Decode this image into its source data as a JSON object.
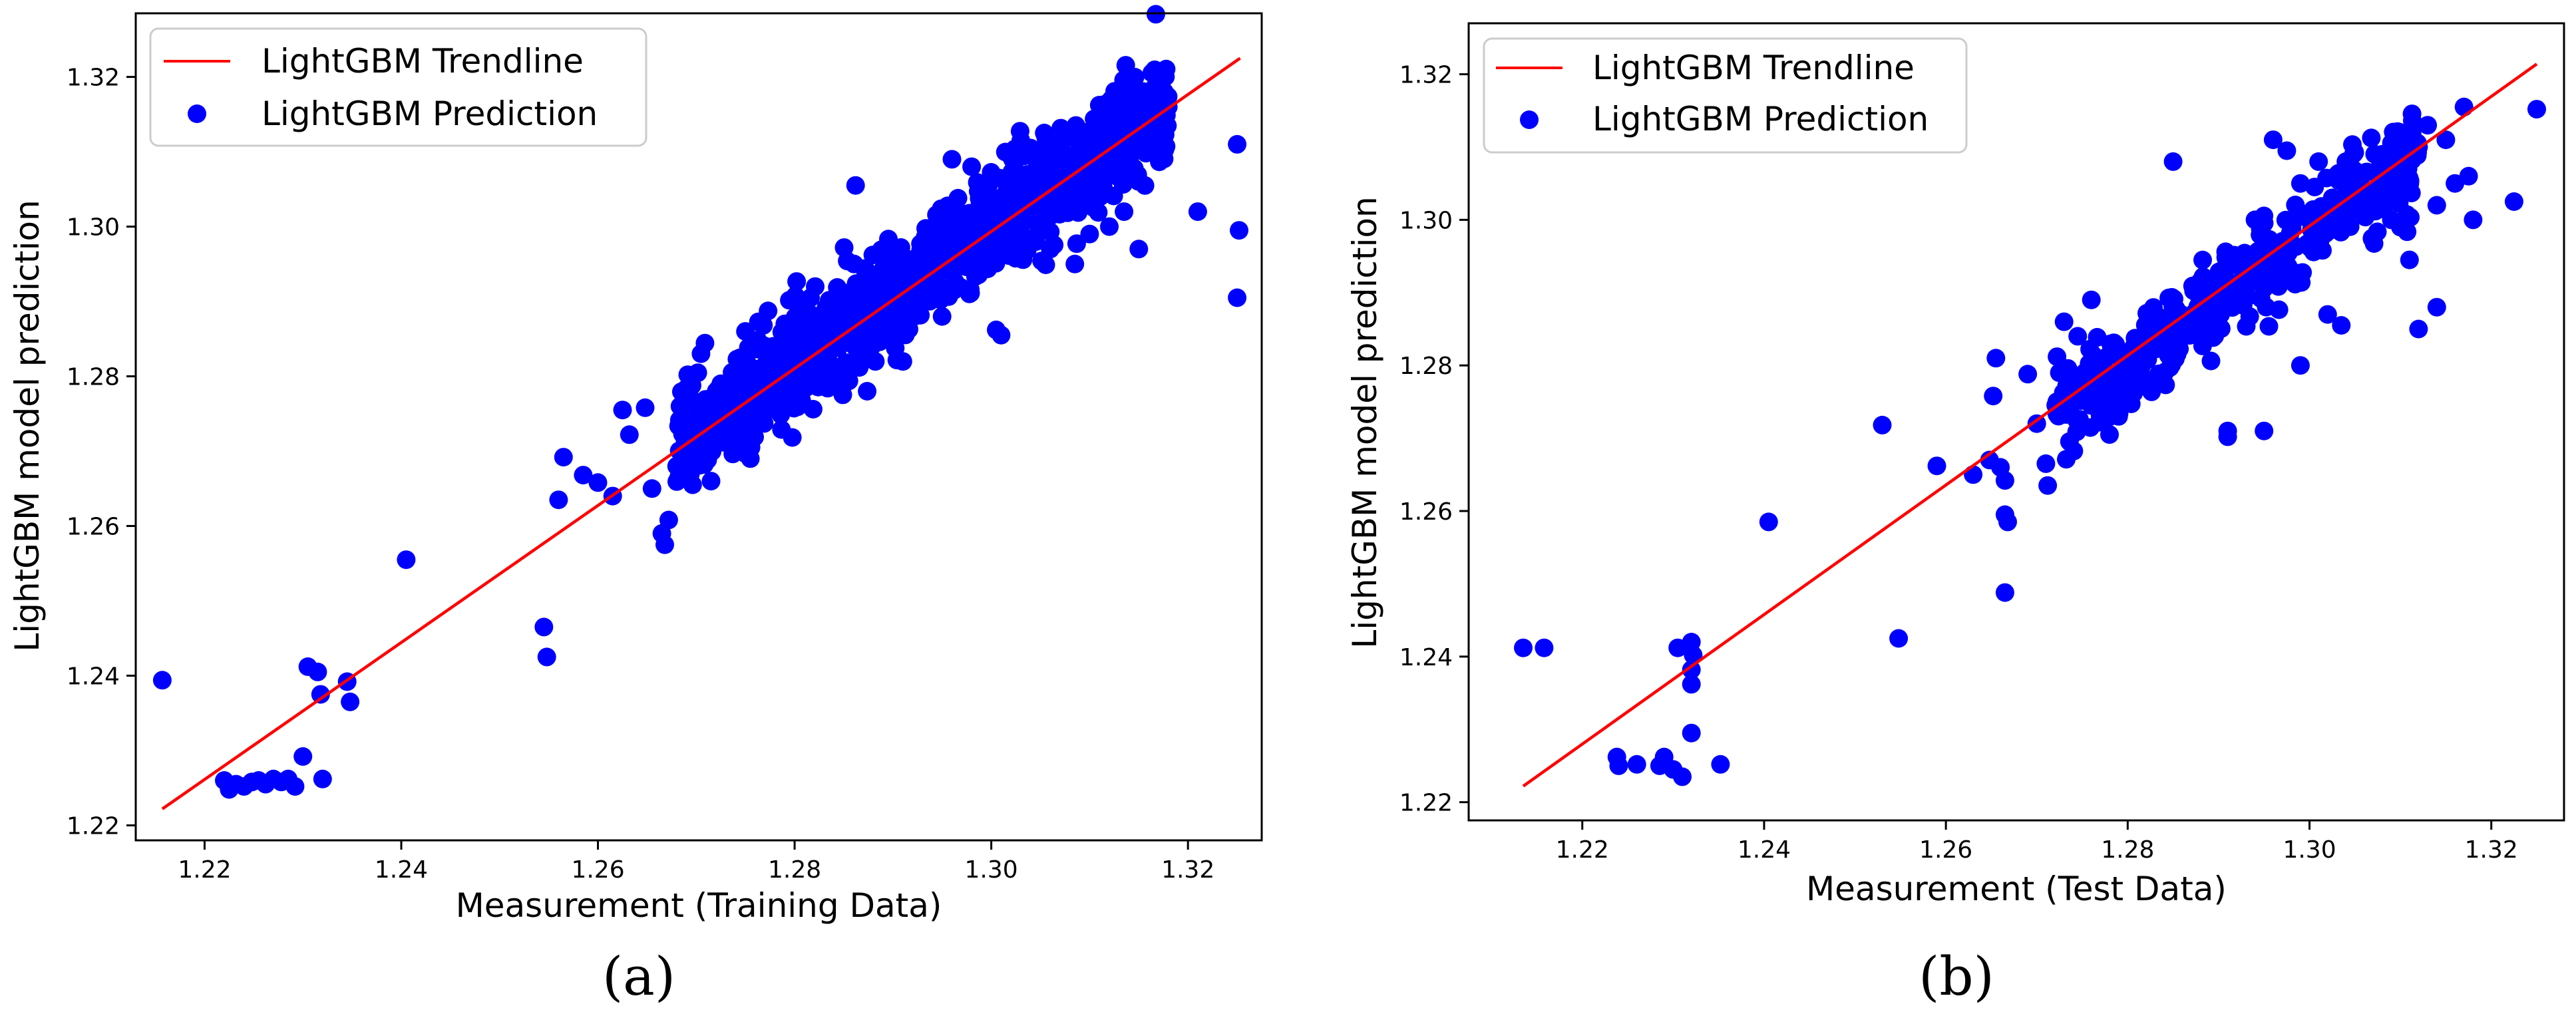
{
  "chart_data": [
    {
      "type": "scatter",
      "panel_label": "(a)",
      "xlabel": "Measurement (Training Data)",
      "ylabel": "LightGBM model prediction",
      "xlim": [
        1.213,
        1.3275
      ],
      "ylim": [
        1.218,
        1.3285
      ],
      "xticks": [
        1.22,
        1.24,
        1.26,
        1.28,
        1.3,
        1.32
      ],
      "xtick_labels": [
        "1.22",
        "1.24",
        "1.26",
        "1.28",
        "1.30",
        "1.32"
      ],
      "yticks": [
        1.22,
        1.24,
        1.26,
        1.28,
        1.3,
        1.32
      ],
      "ytick_labels": [
        "1.22",
        "1.24",
        "1.26",
        "1.28",
        "1.30",
        "1.32"
      ],
      "legend": {
        "position": "top-left",
        "entries": [
          {
            "label": "LightGBM Trendline",
            "kind": "line",
            "color": "#ff0000"
          },
          {
            "label": "LightGBM Prediction",
            "kind": "marker",
            "color": "#0000ff"
          }
        ]
      },
      "trendline": {
        "name": "LightGBM Trendline",
        "x": [
          1.2157,
          1.3253
        ],
        "y": [
          1.2222,
          1.3225
        ],
        "color": "#ff0000"
      },
      "series": [
        {
          "name": "LightGBM Prediction",
          "color": "#0000ff",
          "cluster": {
            "n": 1100,
            "x_range": [
              1.268,
              1.318
            ],
            "slope": 0.91,
            "intercept": 0.117,
            "noise": 0.0035,
            "seed": 7
          },
          "points": [
            [
              1.2157,
              1.2394
            ],
            [
              1.222,
              1.226
            ],
            [
              1.2225,
              1.2248
            ],
            [
              1.2232,
              1.2255
            ],
            [
              1.224,
              1.2252
            ],
            [
              1.2248,
              1.2258
            ],
            [
              1.2255,
              1.226
            ],
            [
              1.2262,
              1.2255
            ],
            [
              1.227,
              1.2262
            ],
            [
              1.2278,
              1.2258
            ],
            [
              1.2285,
              1.2262
            ],
            [
              1.2292,
              1.2252
            ],
            [
              1.23,
              1.2292
            ],
            [
              1.2305,
              1.2412
            ],
            [
              1.2315,
              1.2405
            ],
            [
              1.2318,
              1.2375
            ],
            [
              1.2345,
              1.2392
            ],
            [
              1.2348,
              1.2365
            ],
            [
              1.232,
              1.2262
            ],
            [
              1.2405,
              1.2555
            ],
            [
              1.2545,
              1.2465
            ],
            [
              1.2548,
              1.2425
            ],
            [
              1.256,
              1.2635
            ],
            [
              1.2565,
              1.2692
            ],
            [
              1.2585,
              1.2668
            ],
            [
              1.26,
              1.2658
            ],
            [
              1.2615,
              1.264
            ],
            [
              1.2625,
              1.2755
            ],
            [
              1.2632,
              1.2722
            ],
            [
              1.2648,
              1.2758
            ],
            [
              1.2655,
              1.265
            ],
            [
              1.2665,
              1.259
            ],
            [
              1.2668,
              1.2575
            ],
            [
              1.2672,
              1.2608
            ],
            [
              1.268,
              1.268
            ],
            [
              1.269,
              1.27
            ],
            [
              1.2705,
              1.272
            ],
            [
              1.2715,
              1.266
            ],
            [
              1.2725,
              1.279
            ],
            [
              1.274,
              1.272
            ],
            [
              1.2755,
              1.269
            ],
            [
              1.277,
              1.2805
            ],
            [
              1.278,
              1.282
            ],
            [
              1.2862,
              1.3055
            ],
            [
              1.2878,
              1.2935
            ],
            [
              1.295,
              1.288
            ],
            [
              1.297,
              1.3
            ],
            [
              1.3005,
              1.2862
            ],
            [
              1.301,
              1.2855
            ],
            [
              1.3045,
              1.2985
            ],
            [
              1.306,
              1.297
            ],
            [
              1.3085,
              1.295
            ],
            [
              1.31,
              1.299
            ],
            [
              1.312,
              1.3
            ],
            [
              1.3135,
              1.302
            ],
            [
              1.315,
              1.297
            ],
            [
              1.3175,
              1.3095
            ],
            [
              1.318,
              1.316
            ],
            [
              1.321,
              1.302
            ],
            [
              1.325,
              1.311
            ],
            [
              1.3252,
              1.2995
            ],
            [
              1.325,
              1.2905
            ],
            [
              1.296,
              1.309
            ],
            [
              1.298,
              1.308
            ],
            [
              1.303,
              1.3115
            ],
            [
              1.304,
              1.3105
            ],
            [
              1.309,
              1.3105
            ],
            [
              1.311,
              1.313
            ],
            [
              1.315,
              1.312
            ],
            [
              1.317,
              1.311
            ],
            [
              1.275,
              1.286
            ],
            [
              1.279,
              1.287
            ]
          ]
        }
      ]
    },
    {
      "type": "scatter",
      "panel_label": "(b)",
      "xlabel": "Measurement (Test Data)",
      "ylabel": "LightGBM model prediction",
      "xlim": [
        1.2075,
        1.328
      ],
      "ylim": [
        1.2175,
        1.327
      ],
      "xticks": [
        1.22,
        1.24,
        1.26,
        1.28,
        1.3,
        1.32
      ],
      "xtick_labels": [
        "1.22",
        "1.24",
        "1.26",
        "1.28",
        "1.30",
        "1.32"
      ],
      "yticks": [
        1.22,
        1.24,
        1.26,
        1.28,
        1.3,
        1.32
      ],
      "ytick_labels": [
        "1.22",
        "1.24",
        "1.26",
        "1.28",
        "1.30",
        "1.32"
      ],
      "legend": {
        "position": "top-left",
        "entries": [
          {
            "label": "LightGBM Trendline",
            "kind": "line",
            "color": "#ff0000"
          },
          {
            "label": "LightGBM Prediction",
            "kind": "marker",
            "color": "#0000ff"
          }
        ]
      },
      "trendline": {
        "name": "LightGBM Trendline",
        "x": [
          1.2135,
          1.325
        ],
        "y": [
          1.2222,
          1.3214
        ],
        "color": "#ff0000"
      },
      "series": [
        {
          "name": "LightGBM Prediction",
          "color": "#0000ff",
          "cluster": {
            "n": 420,
            "x_range": [
              1.272,
              1.312
            ],
            "slope": 0.9,
            "intercept": 0.128,
            "noise": 0.0032,
            "seed": 13
          },
          "points": [
            [
              1.2135,
              1.2412
            ],
            [
              1.2158,
              1.2412
            ],
            [
              1.2238,
              1.2262
            ],
            [
              1.224,
              1.225
            ],
            [
              1.226,
              1.2252
            ],
            [
              1.2285,
              1.225
            ],
            [
              1.229,
              1.2262
            ],
            [
              1.23,
              1.2245
            ],
            [
              1.231,
              1.2235
            ],
            [
              1.2305,
              1.2412
            ],
            [
              1.232,
              1.242
            ],
            [
              1.2322,
              1.2402
            ],
            [
              1.232,
              1.2382
            ],
            [
              1.232,
              1.2362
            ],
            [
              1.232,
              1.2295
            ],
            [
              1.2352,
              1.2252
            ],
            [
              1.2405,
              1.2585
            ],
            [
              1.253,
              1.2718
            ],
            [
              1.2548,
              1.2425
            ],
            [
              1.259,
              1.2662
            ],
            [
              1.263,
              1.265
            ],
            [
              1.2648,
              1.267
            ],
            [
              1.2652,
              1.2758
            ],
            [
              1.2655,
              1.281
            ],
            [
              1.266,
              1.266
            ],
            [
              1.2665,
              1.2642
            ],
            [
              1.2665,
              1.2595
            ],
            [
              1.2668,
              1.2585
            ],
            [
              1.2665,
              1.2488
            ],
            [
              1.269,
              1.2788
            ],
            [
              1.27,
              1.272
            ],
            [
              1.271,
              1.2665
            ],
            [
              1.2712,
              1.2635
            ],
            [
              1.2722,
              1.275
            ],
            [
              1.273,
              1.286
            ],
            [
              1.2745,
              1.284
            ],
            [
              1.276,
              1.289
            ],
            [
              1.276,
              1.2745
            ],
            [
              1.278,
              1.2705
            ],
            [
              1.279,
              1.273
            ],
            [
              1.285,
              1.308
            ],
            [
              1.291,
              1.271
            ],
            [
              1.291,
              1.2702
            ],
            [
              1.295,
              1.271
            ],
            [
              1.296,
              1.311
            ],
            [
              1.2975,
              1.3095
            ],
            [
              1.299,
              1.305
            ],
            [
              1.302,
              1.287
            ],
            [
              1.3035,
              1.2855
            ],
            [
              1.304,
              1.308
            ],
            [
              1.308,
              1.305
            ],
            [
              1.309,
              1.3
            ],
            [
              1.31,
              1.299
            ],
            [
              1.311,
              1.2945
            ],
            [
              1.312,
              1.285
            ],
            [
              1.314,
              1.288
            ],
            [
              1.315,
              1.311
            ],
            [
              1.316,
              1.305
            ],
            [
              1.317,
              1.3155
            ],
            [
              1.3175,
              1.306
            ],
            [
              1.318,
              1.3
            ],
            [
              1.3225,
              1.3025
            ],
            [
              1.325,
              1.3152
            ],
            [
              1.299,
              1.28
            ],
            [
              1.312,
              1.31
            ],
            [
              1.313,
              1.313
            ],
            [
              1.31,
              1.312
            ],
            [
              1.308,
              1.309
            ],
            [
              1.314,
              1.302
            ],
            [
              1.301,
              1.308
            ],
            [
              1.294,
              1.3
            ],
            [
              1.296,
              1.292
            ]
          ]
        }
      ]
    }
  ]
}
